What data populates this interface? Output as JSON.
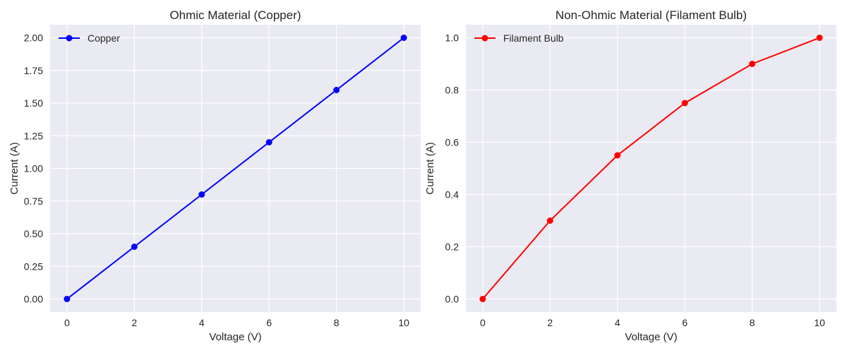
{
  "chart_data": [
    {
      "type": "line",
      "title": "Ohmic Material (Copper)",
      "xlabel": "Voltage (V)",
      "ylabel": "Current (A)",
      "x": [
        0,
        2,
        4,
        6,
        8,
        10
      ],
      "series": [
        {
          "name": "Copper",
          "values": [
            0,
            0.4,
            0.8,
            1.2,
            1.6,
            2.0
          ],
          "color": "#0000ff",
          "marker": "circle"
        }
      ],
      "xlim": [
        -0.5,
        10.5
      ],
      "ylim": [
        -0.1,
        2.1
      ],
      "xticks": [
        0,
        2,
        4,
        6,
        8,
        10
      ],
      "xtick_labels": [
        "0",
        "2",
        "4",
        "6",
        "8",
        "10"
      ],
      "yticks": [
        0,
        0.25,
        0.5,
        0.75,
        1.0,
        1.25,
        1.5,
        1.75,
        2.0
      ],
      "ytick_labels": [
        "0.00",
        "0.25",
        "0.50",
        "0.75",
        "1.00",
        "1.25",
        "1.50",
        "1.75",
        "2.00"
      ],
      "grid": true,
      "legend": "top-left",
      "background": "#eaeaf2"
    },
    {
      "type": "line",
      "title": "Non-Ohmic Material (Filament Bulb)",
      "xlabel": "Voltage (V)",
      "ylabel": "Current (A)",
      "x": [
        0,
        2,
        4,
        6,
        8,
        10
      ],
      "series": [
        {
          "name": "Filament Bulb",
          "values": [
            0,
            0.3,
            0.55,
            0.75,
            0.9,
            1.0
          ],
          "color": "#ff0000",
          "marker": "circle"
        }
      ],
      "xlim": [
        -0.5,
        10.5
      ],
      "ylim": [
        -0.05,
        1.05
      ],
      "xticks": [
        0,
        2,
        4,
        6,
        8,
        10
      ],
      "xtick_labels": [
        "0",
        "2",
        "4",
        "6",
        "8",
        "10"
      ],
      "yticks": [
        0,
        0.2,
        0.4,
        0.6,
        0.8,
        1.0
      ],
      "ytick_labels": [
        "0.0",
        "0.2",
        "0.4",
        "0.6",
        "0.8",
        "1.0"
      ],
      "grid": true,
      "legend": "top-left",
      "background": "#eaeaf2"
    }
  ]
}
